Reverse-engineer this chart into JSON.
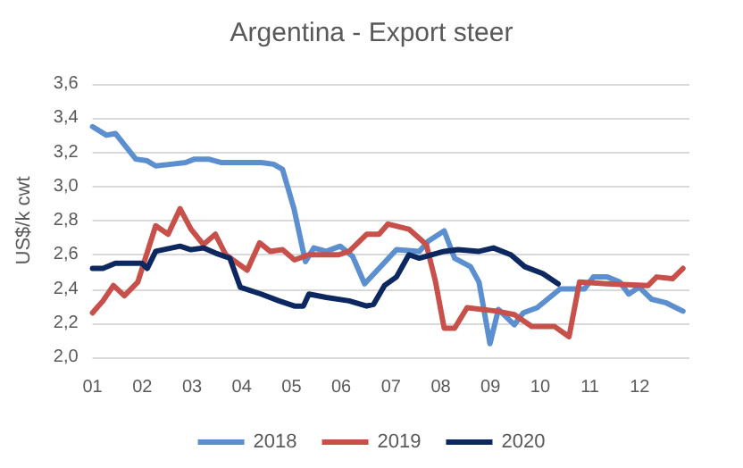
{
  "chart_data": {
    "type": "line",
    "title": "Argentina - Export steer",
    "ylabel": "US$/k cwt",
    "xlim": [
      1,
      13
    ],
    "xticks": [
      {
        "value": 1,
        "label": "01"
      },
      {
        "value": 2,
        "label": "02"
      },
      {
        "value": 3,
        "label": "03"
      },
      {
        "value": 4,
        "label": "04"
      },
      {
        "value": 5,
        "label": "05"
      },
      {
        "value": 6,
        "label": "06"
      },
      {
        "value": 7,
        "label": "07"
      },
      {
        "value": 8,
        "label": "08"
      },
      {
        "value": 9,
        "label": "09"
      },
      {
        "value": 10,
        "label": "10"
      },
      {
        "value": 11,
        "label": "11"
      },
      {
        "value": 12,
        "label": "12"
      }
    ],
    "ylim": [
      2.0,
      3.6
    ],
    "yticks": [
      {
        "value": 2.0,
        "label": "2,0"
      },
      {
        "value": 2.2,
        "label": "2,2"
      },
      {
        "value": 2.4,
        "label": "2,4"
      },
      {
        "value": 2.6,
        "label": "2,6"
      },
      {
        "value": 2.8,
        "label": "2,8"
      },
      {
        "value": 3.0,
        "label": "3,0"
      },
      {
        "value": 3.2,
        "label": "3,2"
      },
      {
        "value": 3.4,
        "label": "3,4"
      },
      {
        "value": 3.6,
        "label": "3,6"
      }
    ],
    "grid": "y",
    "legend": "bottom",
    "marker": "none",
    "line_style": "solid",
    "series": [
      {
        "name": "2018",
        "color": "#5b8fcf",
        "x": [
          1.0,
          1.28,
          1.46,
          1.87,
          2.1,
          2.27,
          2.58,
          2.87,
          3.05,
          3.33,
          3.58,
          4.04,
          4.39,
          4.64,
          4.82,
          5.05,
          5.28,
          5.45,
          5.7,
          5.98,
          6.23,
          6.47,
          6.76,
          7.11,
          7.57,
          7.75,
          8.07,
          8.28,
          8.6,
          8.77,
          8.99,
          9.16,
          9.48,
          9.66,
          9.94,
          10.4,
          10.89,
          11.07,
          11.35,
          11.6,
          11.78,
          11.99,
          12.24,
          12.52,
          12.87
        ],
        "values": [
          3.35,
          3.3,
          3.31,
          3.16,
          3.15,
          3.12,
          3.13,
          3.14,
          3.16,
          3.16,
          3.14,
          3.14,
          3.14,
          3.13,
          3.1,
          2.87,
          2.56,
          2.64,
          2.62,
          2.65,
          2.59,
          2.43,
          2.52,
          2.63,
          2.62,
          2.68,
          2.74,
          2.58,
          2.53,
          2.44,
          2.08,
          2.28,
          2.19,
          2.26,
          2.29,
          2.4,
          2.4,
          2.47,
          2.47,
          2.44,
          2.37,
          2.41,
          2.34,
          2.32,
          2.27
        ]
      },
      {
        "name": "2019",
        "color": "#c8504b",
        "x": [
          1.0,
          1.21,
          1.42,
          1.64,
          1.91,
          2.27,
          2.52,
          2.76,
          2.98,
          3.23,
          3.47,
          3.68,
          4.11,
          4.36,
          4.57,
          4.82,
          5.06,
          5.35,
          5.95,
          6.16,
          6.51,
          6.76,
          6.94,
          7.36,
          7.71,
          7.89,
          8.07,
          8.28,
          8.53,
          9.13,
          9.48,
          9.83,
          10.29,
          10.58,
          10.79,
          11.35,
          12.17,
          12.34,
          12.66,
          12.87
        ],
        "values": [
          2.26,
          2.33,
          2.42,
          2.36,
          2.44,
          2.77,
          2.72,
          2.87,
          2.75,
          2.66,
          2.72,
          2.6,
          2.51,
          2.67,
          2.62,
          2.63,
          2.57,
          2.6,
          2.6,
          2.62,
          2.72,
          2.72,
          2.78,
          2.75,
          2.66,
          2.45,
          2.17,
          2.17,
          2.29,
          2.27,
          2.25,
          2.18,
          2.18,
          2.12,
          2.44,
          2.43,
          2.42,
          2.47,
          2.46,
          2.52
        ]
      },
      {
        "name": "2020",
        "color": "#0d2860",
        "x": [
          1.0,
          1.21,
          1.46,
          1.99,
          2.1,
          2.27,
          2.76,
          2.98,
          3.23,
          3.47,
          3.76,
          3.97,
          4.39,
          4.75,
          5.06,
          5.24,
          5.35,
          5.7,
          6.16,
          6.51,
          6.65,
          6.87,
          7.11,
          7.36,
          7.57,
          8.07,
          8.35,
          8.77,
          9.06,
          9.41,
          9.69,
          10.05,
          10.36
        ],
        "values": [
          2.52,
          2.52,
          2.55,
          2.55,
          2.52,
          2.62,
          2.65,
          2.63,
          2.64,
          2.61,
          2.58,
          2.41,
          2.37,
          2.33,
          2.3,
          2.3,
          2.37,
          2.35,
          2.33,
          2.3,
          2.31,
          2.42,
          2.47,
          2.6,
          2.58,
          2.62,
          2.63,
          2.62,
          2.64,
          2.6,
          2.53,
          2.49,
          2.43
        ]
      }
    ]
  }
}
